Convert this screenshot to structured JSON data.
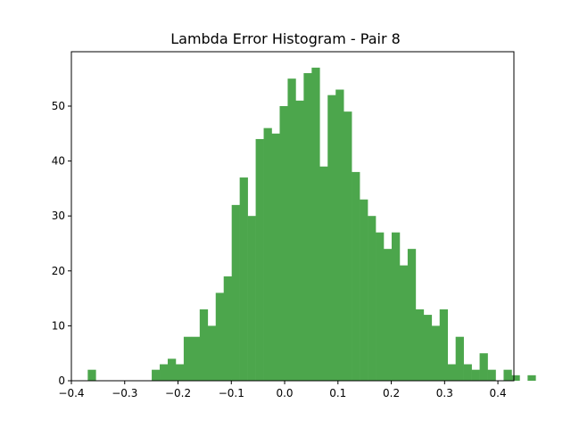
{
  "chart_data": {
    "type": "bar",
    "title": "Lambda Error Histogram - Pair 8",
    "xlabel": "",
    "ylabel": "",
    "xlim": [
      -0.4,
      0.43
    ],
    "ylim": [
      0,
      59.9
    ],
    "bar_color": "#4ca64c",
    "bin_start": -0.3693,
    "bin_width": 0.015,
    "counts": [
      2,
      0,
      0,
      0,
      0,
      0,
      0,
      0,
      2,
      3,
      4,
      3,
      8,
      8,
      13,
      10,
      16,
      19,
      32,
      37,
      30,
      44,
      46,
      45,
      50,
      55,
      51,
      56,
      57,
      39,
      52,
      53,
      49,
      38,
      33,
      30,
      27,
      24,
      27,
      21,
      24,
      13,
      12,
      10,
      13,
      3,
      8,
      3,
      2,
      5,
      2,
      0,
      2,
      1,
      0,
      1
    ],
    "x_ticks": [
      -0.4,
      -0.3,
      -0.2,
      -0.1,
      0.0,
      0.1,
      0.2,
      0.3,
      0.4
    ],
    "x_tick_labels": [
      "−0.4",
      "−0.3",
      "−0.2",
      "−0.1",
      "0.0",
      "0.1",
      "0.2",
      "0.3",
      "0.4"
    ],
    "y_ticks": [
      0,
      10,
      20,
      30,
      40,
      50
    ],
    "y_tick_labels": [
      "0",
      "10",
      "20",
      "30",
      "40",
      "50"
    ],
    "grid": false
  }
}
